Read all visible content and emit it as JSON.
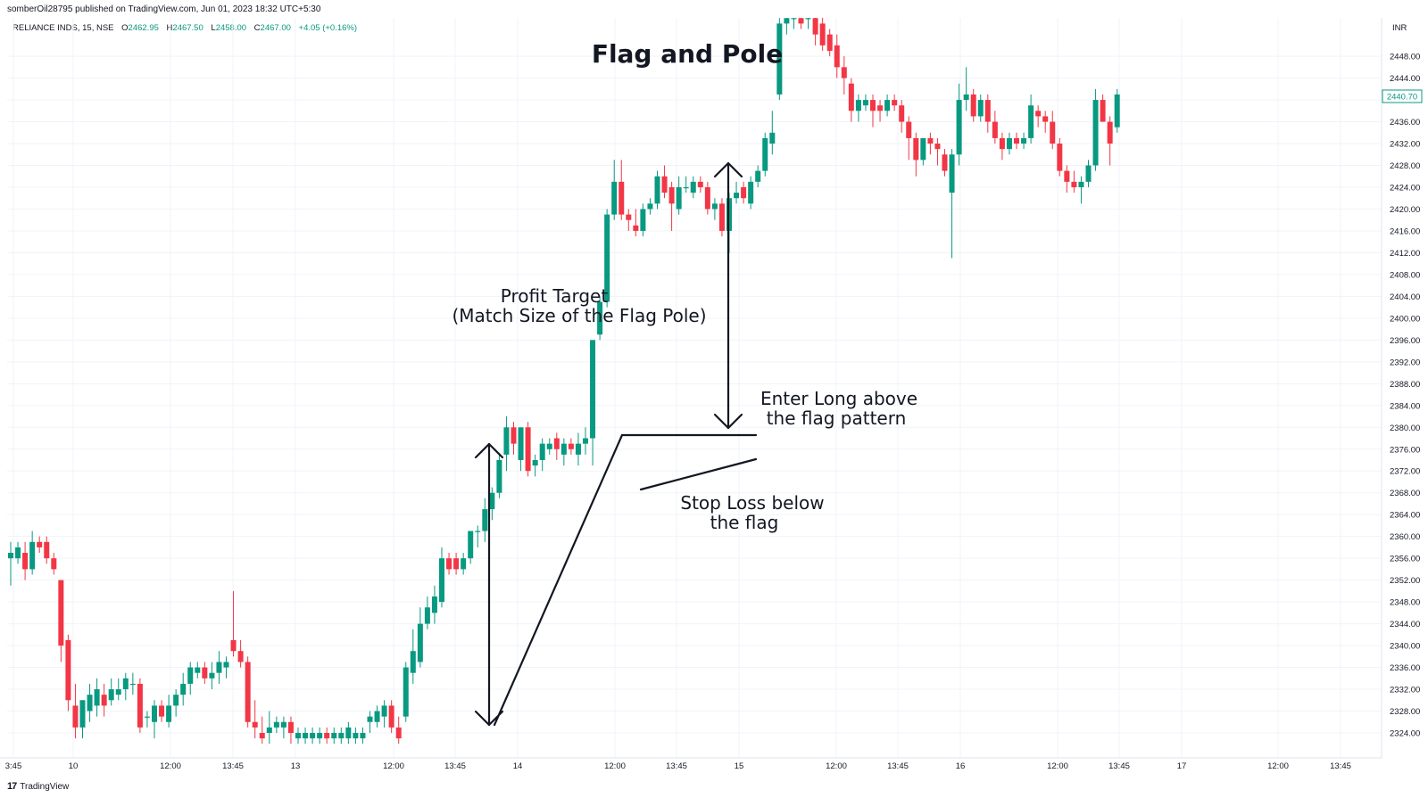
{
  "publisher": "somberOil28795 published on TradingView.com, Jun 01, 2023 18:32 UTC+5:30",
  "legend": {
    "symbol": "RELIANCE INDS, 15, NSE",
    "open_label": "O",
    "open": "2462.95",
    "high_label": "H",
    "high": "2467.50",
    "low_label": "L",
    "low": "2458.00",
    "close_label": "C",
    "close": "2467.00",
    "change": "+4.05 (+0.16%)"
  },
  "currency": "INR",
  "last_price": "2440.70",
  "footer": {
    "logo_mark": "17",
    "logo_text": "TradingView"
  },
  "colors": {
    "up": "#089981",
    "down": "#f23645",
    "grid": "#f0f3fa",
    "text": "#131722"
  },
  "chart_data": {
    "type": "candlestick",
    "title": "Flag and Pole",
    "y_unit": "INR",
    "ylim": [
      2322,
      2456
    ],
    "y_ticks": [
      "2448.00",
      "2444.00",
      "2440.00",
      "2436.00",
      "2432.00",
      "2428.00",
      "2424.00",
      "2420.00",
      "2416.00",
      "2412.00",
      "2408.00",
      "2404.00",
      "2400.00",
      "2396.00",
      "2392.00",
      "2388.00",
      "2384.00",
      "2380.00",
      "2376.00",
      "2372.00",
      "2368.00",
      "2364.00",
      "2360.00",
      "2356.00",
      "2352.00",
      "2348.00",
      "2344.00",
      "2340.00",
      "2336.00",
      "2332.00",
      "2328.00",
      "2324.00"
    ],
    "x_ticks": [
      "3:45",
      "10",
      "12:00",
      "13:45",
      "13",
      "12:00",
      "13:45",
      "14",
      "12:00",
      "13:45",
      "15",
      "12:00",
      "13:45",
      "16",
      "12:00",
      "13:45",
      "17",
      "12:00",
      "13:45"
    ],
    "grid": true,
    "annotations": {
      "profit_target": [
        "Profit Target",
        "(Match Size of the Flag Pole)"
      ],
      "enter_long": [
        "Enter Long above",
        "the flag pattern"
      ],
      "stop_loss": [
        "Stop Loss below",
        "the flag"
      ]
    },
    "candles": [
      {
        "o": 2356,
        "h": 2359,
        "l": 2351,
        "c": 2357
      },
      {
        "o": 2356,
        "h": 2359,
        "l": 2355,
        "c": 2358
      },
      {
        "o": 2357,
        "h": 2359,
        "l": 2352,
        "c": 2354
      },
      {
        "o": 2354,
        "h": 2361,
        "l": 2353,
        "c": 2359
      },
      {
        "o": 2359,
        "h": 2360,
        "l": 2357,
        "c": 2358
      },
      {
        "o": 2359,
        "h": 2360,
        "l": 2355,
        "c": 2356
      },
      {
        "o": 2356,
        "h": 2357,
        "l": 2353,
        "c": 2354
      },
      {
        "o": 2352,
        "h": 2352,
        "l": 2337,
        "c": 2340
      },
      {
        "o": 2341,
        "h": 2342,
        "l": 2328,
        "c": 2330
      },
      {
        "o": 2329,
        "h": 2333,
        "l": 2323,
        "c": 2325
      },
      {
        "o": 2325,
        "h": 2330,
        "l": 2323,
        "c": 2330
      },
      {
        "o": 2328,
        "h": 2333,
        "l": 2326,
        "c": 2331
      },
      {
        "o": 2329,
        "h": 2334,
        "l": 2327,
        "c": 2332
      },
      {
        "o": 2331,
        "h": 2333,
        "l": 2327,
        "c": 2329
      },
      {
        "o": 2330,
        "h": 2334,
        "l": 2329,
        "c": 2332
      },
      {
        "o": 2331,
        "h": 2334,
        "l": 2330,
        "c": 2332
      },
      {
        "o": 2332,
        "h": 2335,
        "l": 2330,
        "c": 2334
      },
      {
        "o": 2333,
        "h": 2335,
        "l": 2331,
        "c": 2333
      },
      {
        "o": 2333,
        "h": 2334,
        "l": 2324,
        "c": 2325
      },
      {
        "o": 2327,
        "h": 2328,
        "l": 2325,
        "c": 2327
      },
      {
        "o": 2326,
        "h": 2330,
        "l": 2323,
        "c": 2329
      },
      {
        "o": 2329,
        "h": 2330,
        "l": 2326,
        "c": 2327
      },
      {
        "o": 2326,
        "h": 2331,
        "l": 2325,
        "c": 2329
      },
      {
        "o": 2329,
        "h": 2332,
        "l": 2327,
        "c": 2331
      },
      {
        "o": 2331,
        "h": 2335,
        "l": 2329,
        "c": 2333
      },
      {
        "o": 2333,
        "h": 2337,
        "l": 2331,
        "c": 2336
      },
      {
        "o": 2335,
        "h": 2337,
        "l": 2334,
        "c": 2336
      },
      {
        "o": 2336,
        "h": 2337,
        "l": 2333,
        "c": 2334
      },
      {
        "o": 2334,
        "h": 2337,
        "l": 2332,
        "c": 2335
      },
      {
        "o": 2335,
        "h": 2339,
        "l": 2333,
        "c": 2337
      },
      {
        "o": 2336,
        "h": 2338,
        "l": 2334,
        "c": 2337
      },
      {
        "o": 2341,
        "h": 2350,
        "l": 2338,
        "c": 2339
      },
      {
        "o": 2339,
        "h": 2341,
        "l": 2336,
        "c": 2337
      },
      {
        "o": 2337,
        "h": 2338,
        "l": 2325,
        "c": 2326
      },
      {
        "o": 2326,
        "h": 2330,
        "l": 2323,
        "c": 2325
      },
      {
        "o": 2324,
        "h": 2327,
        "l": 2322,
        "c": 2323
      },
      {
        "o": 2324,
        "h": 2328,
        "l": 2322,
        "c": 2325
      },
      {
        "o": 2325,
        "h": 2327,
        "l": 2324,
        "c": 2326
      },
      {
        "o": 2325,
        "h": 2327,
        "l": 2323,
        "c": 2326
      },
      {
        "o": 2326,
        "h": 2327,
        "l": 2322,
        "c": 2324
      },
      {
        "o": 2323,
        "h": 2325,
        "l": 2322,
        "c": 2324
      },
      {
        "o": 2323,
        "h": 2325,
        "l": 2322,
        "c": 2324
      },
      {
        "o": 2323,
        "h": 2325,
        "l": 2322,
        "c": 2324
      },
      {
        "o": 2323,
        "h": 2325,
        "l": 2322,
        "c": 2324
      },
      {
        "o": 2324,
        "h": 2325,
        "l": 2322,
        "c": 2323
      },
      {
        "o": 2323,
        "h": 2325,
        "l": 2322,
        "c": 2324
      },
      {
        "o": 2323,
        "h": 2325,
        "l": 2322,
        "c": 2324
      },
      {
        "o": 2323,
        "h": 2326,
        "l": 2322,
        "c": 2325
      },
      {
        "o": 2323,
        "h": 2325,
        "l": 2322,
        "c": 2324
      },
      {
        "o": 2323,
        "h": 2325,
        "l": 2322,
        "c": 2324
      },
      {
        "o": 2326,
        "h": 2328,
        "l": 2324,
        "c": 2327
      },
      {
        "o": 2326,
        "h": 2329,
        "l": 2325,
        "c": 2328
      },
      {
        "o": 2327,
        "h": 2330,
        "l": 2325,
        "c": 2329
      },
      {
        "o": 2329,
        "h": 2330,
        "l": 2324,
        "c": 2325
      },
      {
        "o": 2325,
        "h": 2327,
        "l": 2322,
        "c": 2323
      },
      {
        "o": 2327,
        "h": 2337,
        "l": 2326,
        "c": 2336
      },
      {
        "o": 2335,
        "h": 2343,
        "l": 2333,
        "c": 2339
      },
      {
        "o": 2337,
        "h": 2347,
        "l": 2336,
        "c": 2344
      },
      {
        "o": 2344,
        "h": 2349,
        "l": 2343,
        "c": 2347
      },
      {
        "o": 2346,
        "h": 2351,
        "l": 2344,
        "c": 2349
      },
      {
        "o": 2348,
        "h": 2358,
        "l": 2347,
        "c": 2356
      },
      {
        "o": 2356,
        "h": 2357,
        "l": 2353,
        "c": 2354
      },
      {
        "o": 2356,
        "h": 2357,
        "l": 2353,
        "c": 2354
      },
      {
        "o": 2354,
        "h": 2357,
        "l": 2353,
        "c": 2356
      },
      {
        "o": 2356,
        "h": 2361,
        "l": 2355,
        "c": 2361
      },
      {
        "o": 2361,
        "h": 2362,
        "l": 2358,
        "c": 2361
      },
      {
        "o": 2361,
        "h": 2367,
        "l": 2359,
        "c": 2365
      },
      {
        "o": 2365,
        "h": 2369,
        "l": 2363,
        "c": 2368
      },
      {
        "o": 2368,
        "h": 2375,
        "l": 2367,
        "c": 2374
      },
      {
        "o": 2375,
        "h": 2382,
        "l": 2372,
        "c": 2380
      },
      {
        "o": 2380,
        "h": 2381,
        "l": 2375,
        "c": 2377
      },
      {
        "o": 2374,
        "h": 2380,
        "l": 2372,
        "c": 2380
      },
      {
        "o": 2380,
        "h": 2381,
        "l": 2371,
        "c": 2372
      },
      {
        "o": 2373,
        "h": 2375,
        "l": 2371,
        "c": 2374
      },
      {
        "o": 2374,
        "h": 2378,
        "l": 2372,
        "c": 2377
      },
      {
        "o": 2376,
        "h": 2378,
        "l": 2375,
        "c": 2377
      },
      {
        "o": 2378,
        "h": 2379,
        "l": 2374,
        "c": 2376
      },
      {
        "o": 2375,
        "h": 2378,
        "l": 2373,
        "c": 2377
      },
      {
        "o": 2377,
        "h": 2378,
        "l": 2375,
        "c": 2376
      },
      {
        "o": 2375,
        "h": 2379,
        "l": 2373,
        "c": 2377
      },
      {
        "o": 2377,
        "h": 2380,
        "l": 2375,
        "c": 2378
      },
      {
        "o": 2378,
        "h": 2396,
        "l": 2373,
        "c": 2396
      },
      {
        "o": 2397,
        "h": 2404,
        "l": 2396,
        "c": 2403
      },
      {
        "o": 2403,
        "h": 2420,
        "l": 2402,
        "c": 2419
      },
      {
        "o": 2419,
        "h": 2429,
        "l": 2418,
        "c": 2425
      },
      {
        "o": 2425,
        "h": 2429,
        "l": 2418,
        "c": 2419
      },
      {
        "o": 2419,
        "h": 2420,
        "l": 2416,
        "c": 2418
      },
      {
        "o": 2417,
        "h": 2420,
        "l": 2415,
        "c": 2416
      },
      {
        "o": 2416,
        "h": 2421,
        "l": 2415,
        "c": 2420
      },
      {
        "o": 2420,
        "h": 2422,
        "l": 2419,
        "c": 2421
      },
      {
        "o": 2421,
        "h": 2427,
        "l": 2420,
        "c": 2426
      },
      {
        "o": 2426,
        "h": 2428,
        "l": 2422,
        "c": 2423
      },
      {
        "o": 2424,
        "h": 2425,
        "l": 2416,
        "c": 2421
      },
      {
        "o": 2420,
        "h": 2426,
        "l": 2419,
        "c": 2424
      },
      {
        "o": 2424,
        "h": 2426,
        "l": 2423,
        "c": 2424
      },
      {
        "o": 2423,
        "h": 2426,
        "l": 2422,
        "c": 2425
      },
      {
        "o": 2425,
        "h": 2426,
        "l": 2423,
        "c": 2424
      },
      {
        "o": 2424,
        "h": 2425,
        "l": 2419,
        "c": 2420
      },
      {
        "o": 2420,
        "h": 2422,
        "l": 2418,
        "c": 2421
      },
      {
        "o": 2421,
        "h": 2422,
        "l": 2415,
        "c": 2416
      },
      {
        "o": 2416,
        "h": 2423,
        "l": 2412,
        "c": 2422
      },
      {
        "o": 2422,
        "h": 2425,
        "l": 2421,
        "c": 2423
      },
      {
        "o": 2424,
        "h": 2425,
        "l": 2421,
        "c": 2422
      },
      {
        "o": 2421,
        "h": 2426,
        "l": 2420,
        "c": 2425
      },
      {
        "o": 2425,
        "h": 2428,
        "l": 2424,
        "c": 2427
      },
      {
        "o": 2427,
        "h": 2434,
        "l": 2426,
        "c": 2433
      },
      {
        "o": 2432,
        "h": 2438,
        "l": 2430,
        "c": 2434
      },
      {
        "o": 2441,
        "h": 2455,
        "l": 2440,
        "c": 2454
      },
      {
        "o": 2454,
        "h": 2456,
        "l": 2452,
        "c": 2455
      },
      {
        "o": 2455,
        "h": 2456,
        "l": 2453,
        "c": 2455
      },
      {
        "o": 2455,
        "h": 2456,
        "l": 2453,
        "c": 2454
      },
      {
        "o": 2455,
        "h": 2456,
        "l": 2453,
        "c": 2455
      },
      {
        "o": 2455,
        "h": 2456,
        "l": 2450,
        "c": 2452
      },
      {
        "o": 2454,
        "h": 2456,
        "l": 2449,
        "c": 2450
      },
      {
        "o": 2452,
        "h": 2453,
        "l": 2448,
        "c": 2449
      },
      {
        "o": 2450,
        "h": 2452,
        "l": 2444,
        "c": 2446
      },
      {
        "o": 2446,
        "h": 2448,
        "l": 2441,
        "c": 2444
      },
      {
        "o": 2443,
        "h": 2444,
        "l": 2436,
        "c": 2438
      },
      {
        "o": 2438,
        "h": 2441,
        "l": 2436,
        "c": 2440
      },
      {
        "o": 2439,
        "h": 2441,
        "l": 2438,
        "c": 2440
      },
      {
        "o": 2440,
        "h": 2441,
        "l": 2435,
        "c": 2438
      },
      {
        "o": 2439,
        "h": 2440,
        "l": 2436,
        "c": 2438
      },
      {
        "o": 2438,
        "h": 2441,
        "l": 2437,
        "c": 2440
      },
      {
        "o": 2440,
        "h": 2441,
        "l": 2438,
        "c": 2439
      },
      {
        "o": 2439,
        "h": 2440,
        "l": 2434,
        "c": 2436
      },
      {
        "o": 2436,
        "h": 2437,
        "l": 2429,
        "c": 2433
      },
      {
        "o": 2433,
        "h": 2434,
        "l": 2426,
        "c": 2429
      },
      {
        "o": 2429,
        "h": 2433,
        "l": 2428,
        "c": 2433
      },
      {
        "o": 2433,
        "h": 2434,
        "l": 2430,
        "c": 2432
      },
      {
        "o": 2432,
        "h": 2433,
        "l": 2428,
        "c": 2431
      },
      {
        "o": 2430,
        "h": 2431,
        "l": 2426,
        "c": 2427
      },
      {
        "o": 2423,
        "h": 2431,
        "l": 2411,
        "c": 2430
      },
      {
        "o": 2430,
        "h": 2443,
        "l": 2428,
        "c": 2440
      },
      {
        "o": 2440,
        "h": 2446,
        "l": 2438,
        "c": 2441
      },
      {
        "o": 2441,
        "h": 2442,
        "l": 2436,
        "c": 2437
      },
      {
        "o": 2437,
        "h": 2441,
        "l": 2436,
        "c": 2440
      },
      {
        "o": 2440,
        "h": 2441,
        "l": 2434,
        "c": 2436
      },
      {
        "o": 2436,
        "h": 2438,
        "l": 2432,
        "c": 2433
      },
      {
        "o": 2433,
        "h": 2434,
        "l": 2429,
        "c": 2431
      },
      {
        "o": 2431,
        "h": 2434,
        "l": 2430,
        "c": 2433
      },
      {
        "o": 2433,
        "h": 2434,
        "l": 2431,
        "c": 2432
      },
      {
        "o": 2432,
        "h": 2434,
        "l": 2431,
        "c": 2433
      },
      {
        "o": 2433,
        "h": 2441,
        "l": 2432,
        "c": 2439
      },
      {
        "o": 2438,
        "h": 2439,
        "l": 2435,
        "c": 2437
      },
      {
        "o": 2437,
        "h": 2438,
        "l": 2434,
        "c": 2436
      },
      {
        "o": 2436,
        "h": 2438,
        "l": 2431,
        "c": 2432
      },
      {
        "o": 2432,
        "h": 2433,
        "l": 2426,
        "c": 2427
      },
      {
        "o": 2427,
        "h": 2428,
        "l": 2423,
        "c": 2425
      },
      {
        "o": 2425,
        "h": 2427,
        "l": 2423,
        "c": 2424
      },
      {
        "o": 2424,
        "h": 2426,
        "l": 2421,
        "c": 2425
      },
      {
        "o": 2425,
        "h": 2429,
        "l": 2424,
        "c": 2428
      },
      {
        "o": 2428,
        "h": 2442,
        "l": 2427,
        "c": 2440
      },
      {
        "o": 2440,
        "h": 2441,
        "l": 2436,
        "c": 2436
      },
      {
        "o": 2436,
        "h": 2437,
        "l": 2428,
        "c": 2432
      },
      {
        "o": 2435,
        "h": 2442,
        "l": 2434,
        "c": 2441
      }
    ]
  }
}
